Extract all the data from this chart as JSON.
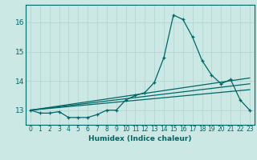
{
  "xlabel": "Humidex (Indice chaleur)",
  "ylabel": "",
  "background_color": "#cce8e5",
  "grid_color": "#b8d8d5",
  "line_color": "#006666",
  "xlim": [
    -0.5,
    23.5
  ],
  "ylim": [
    12.5,
    16.6
  ],
  "yticks": [
    13,
    14,
    15,
    16
  ],
  "xticks": [
    0,
    1,
    2,
    3,
    4,
    5,
    6,
    7,
    8,
    9,
    10,
    11,
    12,
    13,
    14,
    15,
    16,
    17,
    18,
    19,
    20,
    21,
    22,
    23
  ],
  "curve1_x": [
    0,
    1,
    2,
    3,
    4,
    5,
    6,
    7,
    8,
    9,
    10,
    11,
    12,
    13,
    14,
    15,
    16,
    17,
    18,
    19,
    20,
    21,
    22,
    23
  ],
  "curve1_y": [
    13.0,
    12.9,
    12.9,
    12.95,
    12.75,
    12.75,
    12.75,
    12.85,
    13.0,
    13.0,
    13.35,
    13.5,
    13.6,
    13.95,
    14.8,
    16.25,
    16.1,
    15.5,
    14.7,
    14.2,
    13.9,
    14.05,
    13.35,
    13.0
  ],
  "line2_x": [
    0,
    23
  ],
  "line2_y": [
    13.0,
    13.7
  ],
  "line3_x": [
    0,
    23
  ],
  "line3_y": [
    13.0,
    13.9
  ],
  "line4_x": [
    0,
    23
  ],
  "line4_y": [
    13.0,
    14.1
  ]
}
